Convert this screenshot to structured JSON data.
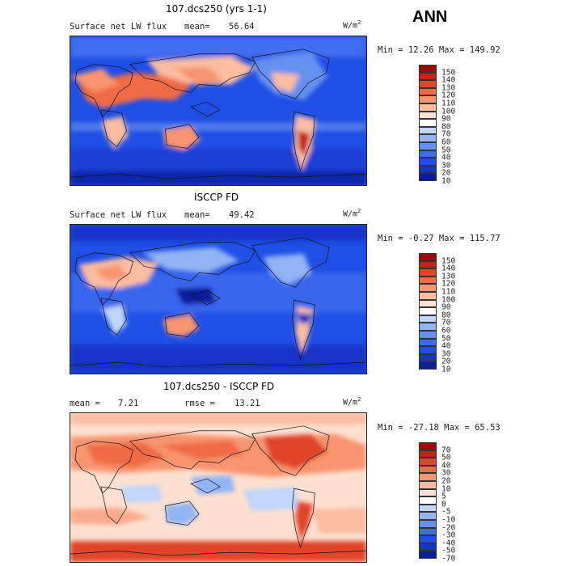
{
  "season": "ANN",
  "units": {
    "base": "W/m",
    "exp": "2"
  },
  "panels": [
    {
      "title": "107.dcs250 (yrs 1-1)",
      "left_label": "Surface net LW flux",
      "stat_label": "mean=",
      "stat_value": "56.64",
      "minmax": "Min =  12.26 Max = 149.92",
      "colors": [
        "#0a1e9a",
        "#1336c8",
        "#1f4fe6",
        "#3f6cf0",
        "#6690f0",
        "#91b4f4",
        "#c0d6fa",
        "#ffffff",
        "#fde0d0",
        "#fbbca0",
        "#f89470",
        "#f06a45",
        "#e0442a",
        "#c52414",
        "#9c0a0a"
      ],
      "ticks": [
        "150",
        "140",
        "130",
        "120",
        "110",
        "100",
        "90",
        "80",
        "70",
        "60",
        "50",
        "40",
        "30",
        "20",
        "10"
      ]
    },
    {
      "title": "ISCCP FD",
      "left_label": "Surface net LW flux",
      "stat_label": "mean=",
      "stat_value": "49.42",
      "minmax": "Min =  -0.27 Max = 115.77",
      "colors": [
        "#0a1e9a",
        "#1336c8",
        "#1f4fe6",
        "#3f6cf0",
        "#6690f0",
        "#91b4f4",
        "#c0d6fa",
        "#ffffff",
        "#fde0d0",
        "#fbbca0",
        "#f89470",
        "#f06a45",
        "#e0442a",
        "#c52414",
        "#9c0a0a"
      ],
      "ticks": [
        "150",
        "140",
        "130",
        "120",
        "110",
        "100",
        "90",
        "80",
        "70",
        "60",
        "50",
        "40",
        "30",
        "20",
        "10"
      ]
    },
    {
      "title": "107.dcs250 - ISCCP FD",
      "left_label": "mean =",
      "left_value": "7.21",
      "stat_label": "rmse =",
      "stat_value": "13.21",
      "minmax": "Min = -27.18 Max =  65.53",
      "colors": [
        "#0a1e9a",
        "#1336c8",
        "#1f4fe6",
        "#3f6cf0",
        "#6690f0",
        "#91b4f4",
        "#c0d6fa",
        "#ffffff",
        "#fde0d0",
        "#fbbca0",
        "#f89470",
        "#f06a45",
        "#e0442a",
        "#c52414",
        "#9c0a0a"
      ],
      "ticks": [
        "70",
        "50",
        "40",
        "30",
        "20",
        "10",
        "5",
        "0",
        "-5",
        "-10",
        "-20",
        "-30",
        "-40",
        "-50",
        "-70"
      ]
    }
  ]
}
